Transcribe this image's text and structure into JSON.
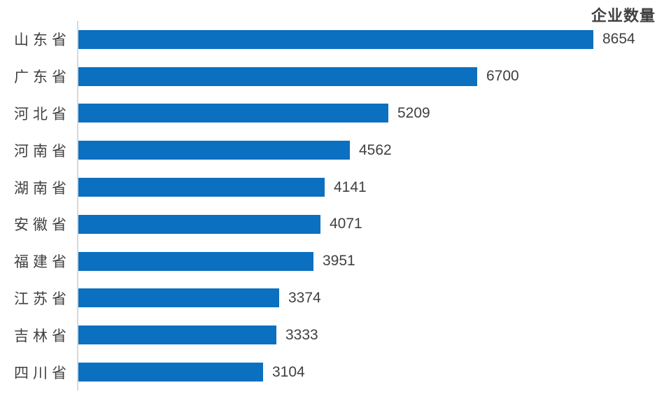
{
  "chart_data": {
    "type": "bar",
    "orientation": "horizontal",
    "title": "企业数量",
    "categories": [
      "山东省",
      "广东省",
      "河北省",
      "河南省",
      "湖南省",
      "安徽省",
      "福建省",
      "江苏省",
      "吉林省",
      "四川省"
    ],
    "values": [
      8654,
      6700,
      5209,
      4562,
      4141,
      4071,
      3951,
      3374,
      3333,
      3104
    ],
    "xlabel": "",
    "ylabel": "",
    "xlim": [
      0,
      8654
    ],
    "grid": false,
    "value_labels_shown": true,
    "legend": "none",
    "colors": {
      "bar": "#0b70c0",
      "axis_line": "#d9d9d9",
      "text": "#404040"
    }
  }
}
